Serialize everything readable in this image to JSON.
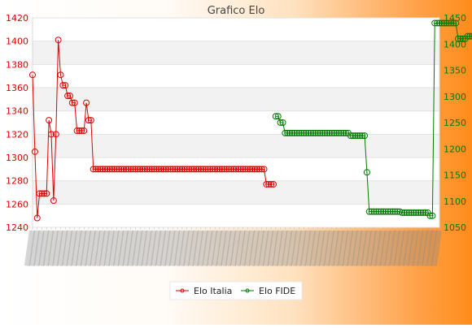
{
  "chart_data": {
    "type": "line",
    "title": "Grafico Elo",
    "legend_position": "bottom-center",
    "grid": true,
    "y_left": {
      "ticks": [
        1240,
        1260,
        1280,
        1300,
        1320,
        1340,
        1360,
        1380,
        1400,
        1420
      ],
      "range": [
        1240,
        1420
      ],
      "tick_color": "#e00000"
    },
    "y_right": {
      "ticks": [
        1050,
        1100,
        1150,
        1200,
        1250,
        1300,
        1350,
        1400,
        1450
      ],
      "range": [
        1050,
        1450
      ],
      "tick_color": "#007a00"
    },
    "x_axis_note": "Category labels are dates rendered rotated and overlapping; unreadable.",
    "series": [
      {
        "name": "Elo Italia",
        "axis": "left",
        "color": "#e00000",
        "values": [
          1371,
          1305,
          1248,
          1269,
          1269,
          1269,
          1269,
          1332,
          1320,
          1263,
          1320,
          1401,
          1371,
          1362,
          1362,
          1353,
          1353,
          1347,
          1347,
          1323,
          1323,
          1323,
          1323,
          1347,
          1332,
          1332,
          1290,
          1290,
          1290,
          1290,
          1290,
          1290,
          1290,
          1290,
          1290,
          1290,
          1290,
          1290,
          1290,
          1290,
          1290,
          1290,
          1290,
          1290,
          1290,
          1290,
          1290,
          1290,
          1290,
          1290,
          1290,
          1290,
          1290,
          1290,
          1290,
          1290,
          1290,
          1290,
          1290,
          1290,
          1290,
          1290,
          1290,
          1290,
          1290,
          1290,
          1290,
          1290,
          1290,
          1290,
          1290,
          1290,
          1290,
          1290,
          1290,
          1290,
          1290,
          1290,
          1290,
          1290,
          1290,
          1290,
          1290,
          1290,
          1290,
          1290,
          1290,
          1290,
          1290,
          1290,
          1290,
          1290,
          1290,
          1290,
          1290,
          1290,
          1290,
          1290,
          1290,
          1290,
          1277,
          1277,
          1277,
          1277,
          null,
          null,
          null,
          null,
          null,
          null,
          null,
          null,
          null,
          null,
          null,
          null,
          null,
          null,
          null,
          null,
          null,
          null,
          null,
          null,
          null,
          null,
          null,
          null,
          null,
          null,
          null,
          null,
          null,
          null,
          null,
          null,
          null,
          null,
          null,
          null,
          null,
          null,
          null,
          null,
          null,
          null,
          null,
          null,
          null,
          null,
          null,
          null,
          null,
          null,
          null,
          null,
          null,
          null,
          null,
          null,
          null,
          null,
          null,
          null,
          null,
          null,
          null,
          null,
          null,
          null,
          null,
          null,
          null,
          null,
          null
        ]
      },
      {
        "name": "Elo FIDE",
        "axis": "right",
        "color": "#007a00",
        "values": [
          null,
          null,
          null,
          null,
          null,
          null,
          null,
          null,
          null,
          null,
          null,
          null,
          null,
          null,
          null,
          null,
          null,
          null,
          null,
          null,
          null,
          null,
          null,
          null,
          null,
          null,
          null,
          null,
          null,
          null,
          null,
          null,
          null,
          null,
          null,
          null,
          null,
          null,
          null,
          null,
          null,
          null,
          null,
          null,
          null,
          null,
          null,
          null,
          null,
          null,
          null,
          null,
          null,
          null,
          null,
          null,
          null,
          null,
          null,
          null,
          null,
          null,
          null,
          null,
          null,
          null,
          null,
          null,
          null,
          null,
          null,
          null,
          null,
          null,
          null,
          null,
          null,
          null,
          null,
          null,
          null,
          null,
          null,
          null,
          null,
          null,
          null,
          null,
          null,
          null,
          null,
          null,
          null,
          null,
          null,
          null,
          null,
          null,
          null,
          null,
          null,
          null,
          null,
          null,
          1262,
          1262,
          1250,
          1250,
          1230,
          1230,
          1230,
          1230,
          1230,
          1230,
          1230,
          1230,
          1230,
          1230,
          1230,
          1230,
          1230,
          1230,
          1230,
          1230,
          1230,
          1230,
          1230,
          1230,
          1230,
          1230,
          1230,
          1230,
          1230,
          1230,
          1230,
          1230,
          1225,
          1225,
          1225,
          1225,
          1225,
          1225,
          1225,
          1155,
          1080,
          1080,
          1080,
          1080,
          1080,
          1080,
          1080,
          1080,
          1080,
          1080,
          1080,
          1080,
          1080,
          1080,
          1078,
          1078,
          1078,
          1078,
          1078,
          1078,
          1078,
          1078,
          1078,
          1078,
          1078,
          1078,
          1072,
          1072,
          1440,
          1440,
          1440,
          1440,
          1440,
          1440,
          1440,
          1440,
          1440,
          1440,
          1410,
          1410,
          1410,
          1410,
          1415,
          1415,
          1415,
          1415,
          1418,
          1418,
          1418,
          1418,
          1418,
          1418,
          1418,
          1418,
          1418,
          1418,
          1418,
          1418,
          1418,
          1418,
          1418,
          1418,
          1418
        ]
      }
    ]
  }
}
